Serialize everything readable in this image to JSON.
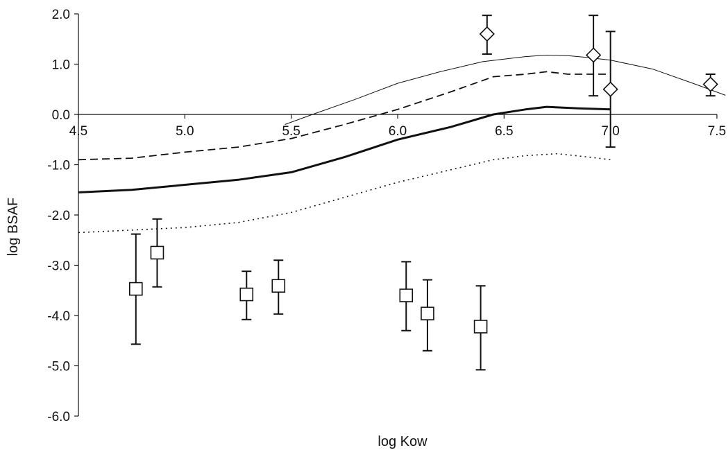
{
  "chart_data": {
    "type": "scatter",
    "title": "",
    "xlabel": "log Kow",
    "ylabel": "log BSAF",
    "xlim": [
      4.5,
      7.5
    ],
    "ylim": [
      -6.0,
      2.0
    ],
    "x_ticks": [
      4.5,
      5.0,
      5.5,
      6.0,
      6.5,
      7.0,
      7.5
    ],
    "x_tick_labels": [
      "4.5",
      "5.0",
      "5.5",
      "6.0",
      "6.5",
      "7.0",
      "7.5"
    ],
    "y_ticks": [
      2.0,
      1.0,
      0.0,
      -1.0,
      -2.0,
      -3.0,
      -4.0,
      -5.0,
      -6.0
    ],
    "y_tick_labels": [
      "2.0",
      "1.0",
      "0.0",
      "-1.0",
      "-2.0",
      "-3.0",
      "-4.0",
      "-5.0",
      "-6.0"
    ],
    "x_axis_crosses_y_at": 0.0,
    "grid": false,
    "legend": "none",
    "series": [
      {
        "marker": "diamond",
        "points": [
          {
            "x": 6.42,
            "y": 1.6,
            "err_low": 1.2,
            "err_high": 1.97
          },
          {
            "x": 6.92,
            "y": 1.18,
            "err_low": 0.37,
            "err_high": 1.97
          },
          {
            "x": 7.0,
            "y": 0.5,
            "err_low": -0.65,
            "err_high": 1.65
          },
          {
            "x": 7.47,
            "y": 0.6,
            "err_low": 0.37,
            "err_high": 0.8
          }
        ]
      },
      {
        "marker": "square",
        "points": [
          {
            "x": 4.77,
            "y": -3.47,
            "err_low": -4.57,
            "err_high": -2.38
          },
          {
            "x": 4.87,
            "y": -2.75,
            "err_low": -3.43,
            "err_high": -2.08
          },
          {
            "x": 5.29,
            "y": -3.58,
            "err_low": -4.08,
            "err_high": -3.12
          },
          {
            "x": 5.44,
            "y": -3.41,
            "err_low": -3.97,
            "err_high": -2.9
          },
          {
            "x": 6.04,
            "y": -3.6,
            "err_low": -4.3,
            "err_high": -2.93
          },
          {
            "x": 6.14,
            "y": -3.96,
            "err_low": -4.7,
            "err_high": -3.29
          },
          {
            "x": 6.39,
            "y": -4.22,
            "err_low": -5.08,
            "err_high": -3.41
          }
        ]
      },
      {
        "line_style": "thin-solid",
        "x": [
          5.47,
          5.6,
          5.8,
          6.0,
          6.2,
          6.4,
          6.6,
          6.7,
          6.8,
          6.9,
          7.0,
          7.2,
          7.4,
          7.54
        ],
        "y": [
          -0.2,
          0.0,
          0.3,
          0.62,
          0.85,
          1.05,
          1.15,
          1.18,
          1.17,
          1.13,
          1.08,
          0.9,
          0.6,
          0.38
        ]
      },
      {
        "line_style": "dashed",
        "x": [
          4.5,
          4.75,
          5.0,
          5.25,
          5.5,
          5.75,
          6.0,
          6.25,
          6.45,
          6.6,
          6.7,
          6.8,
          7.0
        ],
        "y": [
          -0.9,
          -0.87,
          -0.75,
          -0.65,
          -0.48,
          -0.2,
          0.1,
          0.45,
          0.75,
          0.8,
          0.85,
          0.8,
          0.8
        ]
      },
      {
        "line_style": "thick-solid",
        "x": [
          4.5,
          4.75,
          5.0,
          5.25,
          5.5,
          5.75,
          6.0,
          6.25,
          6.45,
          6.6,
          6.7,
          6.85,
          7.0
        ],
        "y": [
          -1.55,
          -1.5,
          -1.4,
          -1.3,
          -1.15,
          -0.85,
          -0.5,
          -0.25,
          0.0,
          0.1,
          0.15,
          0.12,
          0.1
        ]
      },
      {
        "line_style": "dotted",
        "x": [
          4.5,
          4.75,
          5.0,
          5.25,
          5.5,
          5.75,
          6.0,
          6.25,
          6.45,
          6.6,
          6.75,
          6.9,
          7.0
        ],
        "y": [
          -2.35,
          -2.3,
          -2.25,
          -2.15,
          -1.95,
          -1.65,
          -1.35,
          -1.1,
          -0.9,
          -0.82,
          -0.78,
          -0.85,
          -0.9
        ]
      }
    ]
  }
}
